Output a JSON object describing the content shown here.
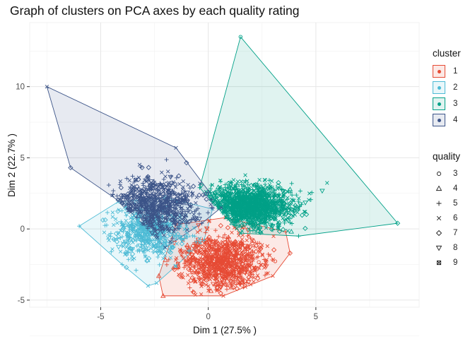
{
  "chart_data": {
    "type": "scatter",
    "title": "Graph of clusters on PCA axes by each quality rating",
    "xlabel": "Dim 1 (27.5% )",
    "ylabel": "Dim 2 (22.7% )",
    "xlim": [
      -8.3,
      9.8
    ],
    "ylim": [
      -5.5,
      14.5
    ],
    "x_ticks": [
      -5,
      0,
      5
    ],
    "y_ticks": [
      -5,
      0,
      5,
      10
    ],
    "grid": true,
    "legend_position": "right",
    "clusters": [
      {
        "name": "1",
        "color": "#E64B35",
        "hull": [
          [
            -2.3,
            -3.3
          ],
          [
            -2.1,
            -4.7
          ],
          [
            0.7,
            -4.7
          ],
          [
            3.0,
            -3.3
          ],
          [
            3.8,
            -1.7
          ],
          [
            3.6,
            -0.2
          ],
          [
            0.8,
            0.8
          ],
          [
            -1.5,
            0.3
          ]
        ],
        "center": [
          0.7,
          -2.3
        ],
        "spread": [
          1.0,
          1.0
        ],
        "points": 900
      },
      {
        "name": "2",
        "color": "#4DBBD5",
        "hull": [
          [
            -6.0,
            0.2
          ],
          [
            -4.2,
            1.9
          ],
          [
            -2.0,
            2.2
          ],
          [
            0.2,
            1.4
          ],
          [
            -0.2,
            -0.8
          ],
          [
            -1.5,
            -2.6
          ],
          [
            -2.4,
            -3.8
          ],
          [
            -2.8,
            -4.0
          ],
          [
            -4.0,
            -2.5
          ]
        ],
        "center": [
          -2.8,
          -0.3
        ],
        "spread": [
          0.9,
          0.9
        ],
        "points": 500
      },
      {
        "name": "3",
        "color": "#00A087",
        "hull": [
          [
            -0.4,
            2.9
          ],
          [
            1.5,
            13.5
          ],
          [
            8.8,
            0.4
          ],
          [
            4.2,
            -0.5
          ],
          [
            1.5,
            -0.3
          ]
        ],
        "center": [
          1.9,
          1.6
        ],
        "spread": [
          1.0,
          0.75
        ],
        "points": 1300
      },
      {
        "name": "4",
        "color": "#3C5488",
        "hull": [
          [
            -7.5,
            10.0
          ],
          [
            -1.5,
            5.7
          ],
          [
            0.6,
            1.5
          ],
          [
            -0.3,
            0.4
          ],
          [
            -2.0,
            -1.3
          ],
          [
            -4.0,
            1.8
          ],
          [
            -6.4,
            4.3
          ]
        ],
        "center": [
          -2.5,
          1.6
        ],
        "spread": [
          1.0,
          1.0
        ],
        "points": 700
      }
    ],
    "legend_cluster": {
      "title": "cluster",
      "labels": [
        "1",
        "2",
        "3",
        "4"
      ]
    },
    "legend_quality": {
      "title": "quality",
      "labels": [
        "3",
        "4",
        "5",
        "6",
        "7",
        "8",
        "9"
      ],
      "shapes": [
        "circle",
        "triangle",
        "plus",
        "cross",
        "diamond",
        "triangle-down",
        "square-x"
      ]
    }
  }
}
